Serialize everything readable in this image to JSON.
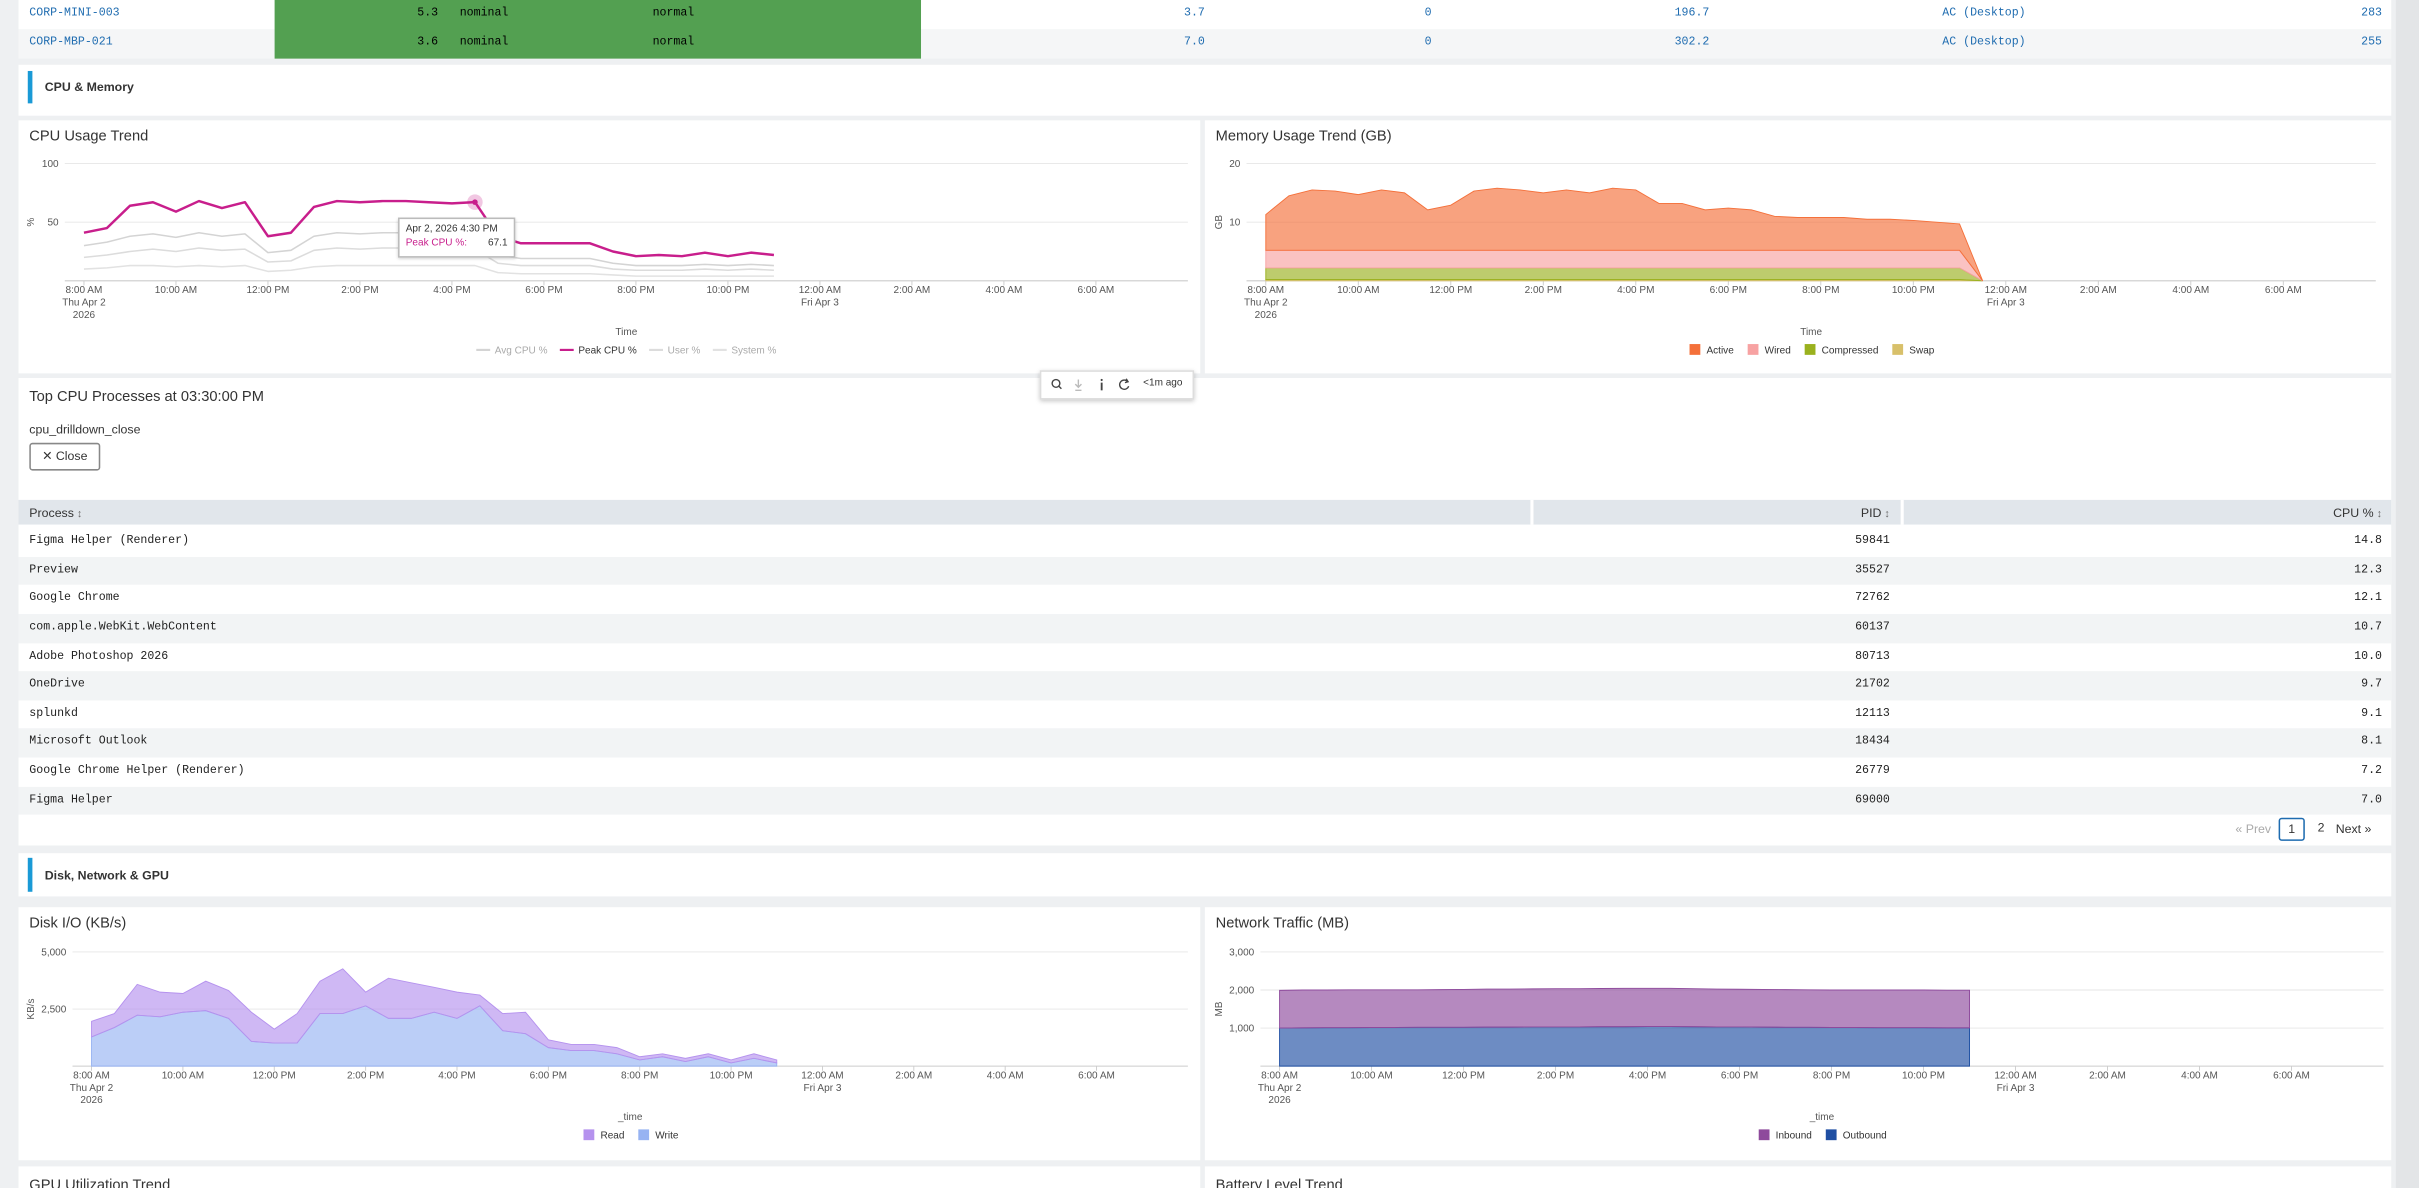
{
  "device_table": {
    "rows": [
      [
        "CORP-MINI-003",
        "5.3",
        "nominal",
        "normal",
        "3.7",
        "0",
        "196.7",
        "AC (Desktop)",
        "283"
      ],
      [
        "CORP-MBP-021",
        "3.6",
        "nominal",
        "normal",
        "7.0",
        "0",
        "302.2",
        "AC (Desktop)",
        "255"
      ]
    ]
  },
  "sections": [
    "CPU & Memory",
    "Disk, Network & GPU"
  ],
  "chart_data": [
    {
      "type": "line",
      "title": "CPU Usage Trend",
      "xlabel": "Time",
      "ylabel": "%",
      "x": [
        "2026-04-02T08:00",
        "2026-04-02T08:30",
        "2026-04-02T09:00",
        "2026-04-02T09:30",
        "2026-04-02T10:00",
        "2026-04-02T10:30",
        "2026-04-02T11:00",
        "2026-04-02T11:30",
        "2026-04-02T12:00",
        "2026-04-02T12:30",
        "2026-04-02T13:00",
        "2026-04-02T13:30",
        "2026-04-02T14:00",
        "2026-04-02T14:30",
        "2026-04-02T15:00",
        "2026-04-02T15:30",
        "2026-04-02T16:00",
        "2026-04-02T16:30",
        "2026-04-02T17:00",
        "2026-04-02T17:30",
        "2026-04-02T18:00",
        "2026-04-02T18:30",
        "2026-04-02T19:00",
        "2026-04-02T19:30",
        "2026-04-02T20:00",
        "2026-04-02T20:30",
        "2026-04-02T21:00",
        "2026-04-02T21:30",
        "2026-04-02T22:00",
        "2026-04-02T22:30",
        "2026-04-02T23:00"
      ],
      "xlim": [
        "2026-04-02T07:35",
        "2026-04-03T08:00"
      ],
      "xticks": [
        {
          "value": "2026-04-02T08:00",
          "label": "8:00 AM\nThu Apr 2\n2026"
        },
        {
          "value": "2026-04-02T10:00",
          "label": "10:00 AM"
        },
        {
          "value": "2026-04-02T12:00",
          "label": "12:00 PM"
        },
        {
          "value": "2026-04-02T14:00",
          "label": "2:00 PM"
        },
        {
          "value": "2026-04-02T16:00",
          "label": "4:00 PM"
        },
        {
          "value": "2026-04-02T18:00",
          "label": "6:00 PM"
        },
        {
          "value": "2026-04-02T20:00",
          "label": "8:00 PM"
        },
        {
          "value": "2026-04-02T22:00",
          "label": "10:00 PM"
        },
        {
          "value": "2026-04-03T00:00",
          "label": "12:00 AM\nFri Apr 3"
        },
        {
          "value": "2026-04-03T02:00",
          "label": "2:00 AM"
        },
        {
          "value": "2026-04-03T04:00",
          "label": "4:00 AM"
        },
        {
          "value": "2026-04-03T06:00",
          "label": "6:00 AM"
        }
      ],
      "ylim": [
        0,
        100
      ],
      "yticks": [
        50,
        100
      ],
      "grid": true,
      "legend": "bottom",
      "series": [
        {
          "name": "Avg CPU %",
          "color": "#d4d4d4",
          "muted": true,
          "values": [
            30,
            33,
            38,
            40,
            37,
            41,
            38,
            40,
            24,
            26,
            38,
            41,
            40,
            41,
            41,
            40,
            40,
            40,
            22,
            19,
            19,
            19,
            19,
            15,
            13,
            13,
            13,
            14,
            13,
            14,
            13
          ]
        },
        {
          "name": "Peak CPU %",
          "color": "#c81e8c",
          "values": [
            41,
            45,
            64,
            67,
            59,
            68,
            62,
            67,
            38,
            41,
            63,
            68,
            67,
            68,
            68,
            67,
            66,
            67.1,
            38,
            32,
            32,
            32,
            32,
            25,
            21,
            22,
            21,
            24,
            21,
            24,
            22
          ]
        },
        {
          "name": "User %",
          "color": "#dcdcdc",
          "muted": true,
          "values": [
            20,
            22,
            25,
            27,
            25,
            28,
            26,
            27,
            16,
            17,
            26,
            28,
            27,
            28,
            28,
            27,
            27,
            27,
            15,
            13,
            13,
            13,
            13,
            10,
            9,
            9,
            9,
            10,
            9,
            10,
            9
          ]
        },
        {
          "name": "System %",
          "color": "#e2e2e2",
          "muted": true,
          "values": [
            10,
            11,
            13,
            13,
            12,
            13,
            12,
            13,
            8,
            9,
            12,
            13,
            13,
            13,
            13,
            13,
            13,
            13,
            7,
            6,
            6,
            6,
            6,
            5,
            4,
            4,
            4,
            4,
            4,
            4,
            4
          ]
        }
      ]
    },
    {
      "type": "area",
      "stacked": true,
      "title": "Memory Usage Trend (GB)",
      "xlabel": "Time",
      "ylabel": "GB",
      "x": [
        "2026-04-02T08:00",
        "2026-04-02T08:30",
        "2026-04-02T09:00",
        "2026-04-02T09:30",
        "2026-04-02T10:00",
        "2026-04-02T10:30",
        "2026-04-02T11:00",
        "2026-04-02T11:30",
        "2026-04-02T12:00",
        "2026-04-02T12:30",
        "2026-04-02T13:00",
        "2026-04-02T13:30",
        "2026-04-02T14:00",
        "2026-04-02T14:30",
        "2026-04-02T15:00",
        "2026-04-02T15:30",
        "2026-04-02T16:00",
        "2026-04-02T16:30",
        "2026-04-02T17:00",
        "2026-04-02T17:30",
        "2026-04-02T18:00",
        "2026-04-02T18:30",
        "2026-04-02T19:00",
        "2026-04-02T19:30",
        "2026-04-02T20:00",
        "2026-04-02T20:30",
        "2026-04-02T21:00",
        "2026-04-02T21:30",
        "2026-04-02T22:00",
        "2026-04-02T22:30",
        "2026-04-02T23:00",
        "2026-04-02T23:30"
      ],
      "xlim": [
        "2026-04-02T07:35",
        "2026-04-03T08:00"
      ],
      "xticks": [
        {
          "value": "2026-04-02T08:00",
          "label": "8:00 AM\nThu Apr 2\n2026"
        },
        {
          "value": "2026-04-02T10:00",
          "label": "10:00 AM"
        },
        {
          "value": "2026-04-02T12:00",
          "label": "12:00 PM"
        },
        {
          "value": "2026-04-02T14:00",
          "label": "2:00 PM"
        },
        {
          "value": "2026-04-02T16:00",
          "label": "4:00 PM"
        },
        {
          "value": "2026-04-02T18:00",
          "label": "6:00 PM"
        },
        {
          "value": "2026-04-02T20:00",
          "label": "8:00 PM"
        },
        {
          "value": "2026-04-02T22:00",
          "label": "10:00 PM"
        },
        {
          "value": "2026-04-03T00:00",
          "label": "12:00 AM\nFri Apr 3"
        },
        {
          "value": "2026-04-03T02:00",
          "label": "2:00 AM"
        },
        {
          "value": "2026-04-03T04:00",
          "label": "4:00 AM"
        },
        {
          "value": "2026-04-03T06:00",
          "label": "6:00 AM"
        }
      ],
      "ylim": [
        0,
        20
      ],
      "yticks": [
        10,
        20
      ],
      "grid": true,
      "legend": "bottom",
      "series": [
        {
          "name": "Active",
          "color": "#f4703a",
          "values": [
            6.1,
            9.3,
            10.3,
            10.1,
            9.5,
            10.3,
            9.8,
            6.9,
            7.7,
            10.1,
            10.6,
            10.3,
            9.8,
            10.3,
            9.8,
            10.6,
            10.3,
            8.0,
            8.0,
            6.9,
            7.2,
            6.9,
            5.8,
            5.6,
            5.6,
            5.6,
            5.3,
            5.3,
            5.1,
            4.8,
            4.5,
            0
          ]
        },
        {
          "name": "Wired",
          "color": "#f7a2a2",
          "values": [
            3.0,
            3.0,
            3.0,
            3.0,
            3.0,
            3.0,
            3.0,
            3.0,
            3.0,
            3.0,
            3.0,
            3.0,
            3.0,
            3.0,
            3.0,
            3.0,
            3.0,
            3.0,
            3.0,
            3.0,
            3.0,
            3.0,
            3.0,
            3.0,
            3.0,
            3.0,
            3.0,
            3.0,
            3.0,
            3.0,
            3.0,
            0
          ]
        },
        {
          "name": "Compressed",
          "color": "#9ab11e",
          "values": [
            2.0,
            2.0,
            2.0,
            2.0,
            2.0,
            2.0,
            2.0,
            2.0,
            2.0,
            2.0,
            2.0,
            2.0,
            2.0,
            2.0,
            2.0,
            2.0,
            2.0,
            2.0,
            2.0,
            2.0,
            2.0,
            2.0,
            2.0,
            2.0,
            2.0,
            2.0,
            2.0,
            2.0,
            2.0,
            2.0,
            2.0,
            0
          ]
        },
        {
          "name": "Swap",
          "color": "#d8c06a",
          "values": [
            0.2,
            0.2,
            0.2,
            0.2,
            0.2,
            0.2,
            0.2,
            0.2,
            0.2,
            0.2,
            0.2,
            0.2,
            0.2,
            0.2,
            0.2,
            0.2,
            0.2,
            0.2,
            0.2,
            0.2,
            0.2,
            0.2,
            0.2,
            0.2,
            0.2,
            0.2,
            0.2,
            0.2,
            0.2,
            0.2,
            0.2,
            0
          ]
        }
      ]
    },
    {
      "type": "area",
      "stacked": true,
      "title": "Disk I/O (KB/s)",
      "xlabel": "_time",
      "ylabel": "KB/s",
      "x": [
        "2026-04-02T08:00",
        "2026-04-02T08:30",
        "2026-04-02T09:00",
        "2026-04-02T09:30",
        "2026-04-02T10:00",
        "2026-04-02T10:30",
        "2026-04-02T11:00",
        "2026-04-02T11:30",
        "2026-04-02T12:00",
        "2026-04-02T12:30",
        "2026-04-02T13:00",
        "2026-04-02T13:30",
        "2026-04-02T14:00",
        "2026-04-02T14:30",
        "2026-04-02T15:00",
        "2026-04-02T15:30",
        "2026-04-02T16:00",
        "2026-04-02T16:30",
        "2026-04-02T17:00",
        "2026-04-02T17:30",
        "2026-04-02T18:00",
        "2026-04-02T18:30",
        "2026-04-02T19:00",
        "2026-04-02T19:30",
        "2026-04-02T20:00",
        "2026-04-02T20:30",
        "2026-04-02T21:00",
        "2026-04-02T21:30",
        "2026-04-02T22:00",
        "2026-04-02T22:30",
        "2026-04-02T23:00"
      ],
      "xlim": [
        "2026-04-02T07:35",
        "2026-04-03T08:00"
      ],
      "xticks": [
        {
          "value": "2026-04-02T08:00",
          "label": "8:00 AM\nThu Apr 2\n2026"
        },
        {
          "value": "2026-04-02T10:00",
          "label": "10:00 AM"
        },
        {
          "value": "2026-04-02T12:00",
          "label": "12:00 PM"
        },
        {
          "value": "2026-04-02T14:00",
          "label": "2:00 PM"
        },
        {
          "value": "2026-04-02T16:00",
          "label": "4:00 PM"
        },
        {
          "value": "2026-04-02T18:00",
          "label": "6:00 PM"
        },
        {
          "value": "2026-04-02T20:00",
          "label": "8:00 PM"
        },
        {
          "value": "2026-04-02T22:00",
          "label": "10:00 PM"
        },
        {
          "value": "2026-04-03T00:00",
          "label": "12:00 AM\nFri Apr 3"
        },
        {
          "value": "2026-04-03T02:00",
          "label": "2:00 AM"
        },
        {
          "value": "2026-04-03T04:00",
          "label": "4:00 AM"
        },
        {
          "value": "2026-04-03T06:00",
          "label": "6:00 AM"
        }
      ],
      "ylim": [
        0,
        5000
      ],
      "yticks": [
        {
          "value": 2500,
          "label": "2,500"
        },
        {
          "value": 5000,
          "label": "5,000"
        }
      ],
      "grid": true,
      "legend": "bottom",
      "series": [
        {
          "name": "Read",
          "color": "#b592ee",
          "values": [
            680,
            610,
            1350,
            1080,
            820,
            1290,
            1220,
            1280,
            610,
            1290,
            1420,
            1960,
            600,
            1760,
            1560,
            1090,
            1150,
            470,
            750,
            940,
            340,
            270,
            270,
            270,
            140,
            130,
            140,
            130,
            130,
            200,
            130
          ]
        },
        {
          "name": "Write",
          "color": "#97b3f2",
          "values": [
            1280,
            1690,
            2230,
            2160,
            2360,
            2430,
            2090,
            1080,
            1010,
            1010,
            2300,
            2300,
            2640,
            2090,
            2090,
            2360,
            2090,
            2640,
            1550,
            1420,
            810,
            680,
            680,
            540,
            270,
            410,
            200,
            410,
            140,
            340,
            140
          ]
        }
      ]
    },
    {
      "type": "area",
      "stacked": true,
      "title": "Network Traffic (MB)",
      "xlabel": "_time",
      "ylabel": "MB",
      "x": [
        "2026-04-02T08:00",
        "2026-04-02T08:30",
        "2026-04-02T09:00",
        "2026-04-02T09:30",
        "2026-04-02T10:00",
        "2026-04-02T10:30",
        "2026-04-02T11:00",
        "2026-04-02T11:30",
        "2026-04-02T12:00",
        "2026-04-02T12:30",
        "2026-04-02T13:00",
        "2026-04-02T13:30",
        "2026-04-02T14:00",
        "2026-04-02T14:30",
        "2026-04-02T15:00",
        "2026-04-02T15:30",
        "2026-04-02T16:00",
        "2026-04-02T16:30",
        "2026-04-02T17:00",
        "2026-04-02T17:30",
        "2026-04-02T18:00",
        "2026-04-02T18:30",
        "2026-04-02T19:00",
        "2026-04-02T19:30",
        "2026-04-02T20:00",
        "2026-04-02T20:30",
        "2026-04-02T21:00",
        "2026-04-02T21:30",
        "2026-04-02T22:00",
        "2026-04-02T22:30",
        "2026-04-02T23:00"
      ],
      "xlim": [
        "2026-04-02T07:35",
        "2026-04-03T08:00"
      ],
      "xticks": [
        {
          "value": "2026-04-02T08:00",
          "label": "8:00 AM\nThu Apr 2\n2026"
        },
        {
          "value": "2026-04-02T10:00",
          "label": "10:00 AM"
        },
        {
          "value": "2026-04-02T12:00",
          "label": "12:00 PM"
        },
        {
          "value": "2026-04-02T14:00",
          "label": "2:00 PM"
        },
        {
          "value": "2026-04-02T16:00",
          "label": "4:00 PM"
        },
        {
          "value": "2026-04-02T18:00",
          "label": "6:00 PM"
        },
        {
          "value": "2026-04-02T20:00",
          "label": "8:00 PM"
        },
        {
          "value": "2026-04-02T22:00",
          "label": "10:00 PM"
        },
        {
          "value": "2026-04-03T00:00",
          "label": "12:00 AM\nFri Apr 3"
        },
        {
          "value": "2026-04-03T02:00",
          "label": "2:00 AM"
        },
        {
          "value": "2026-04-03T04:00",
          "label": "4:00 AM"
        },
        {
          "value": "2026-04-03T06:00",
          "label": "6:00 AM"
        }
      ],
      "ylim": [
        0,
        3000
      ],
      "yticks": [
        {
          "value": 1000,
          "label": "1,000"
        },
        {
          "value": 2000,
          "label": "2,000"
        },
        {
          "value": 3000,
          "label": "3,000"
        }
      ],
      "grid": true,
      "legend": "bottom",
      "series": [
        {
          "name": "Inbound",
          "color": "#8e4a9c",
          "values": [
            990,
            995,
            990,
            995,
            990,
            990,
            985,
            990,
            995,
            1000,
            1000,
            1000,
            1005,
            1005,
            1005,
            1010,
            1005,
            1005,
            1000,
            995,
            990,
            990,
            990,
            985,
            985,
            985,
            990,
            990,
            990,
            990,
            990
          ]
        },
        {
          "name": "Outbound",
          "color": "#1f4fa3",
          "values": [
            1000,
            1005,
            1010,
            1010,
            1015,
            1015,
            1020,
            1020,
            1020,
            1025,
            1025,
            1030,
            1030,
            1030,
            1035,
            1035,
            1040,
            1040,
            1035,
            1030,
            1030,
            1025,
            1020,
            1020,
            1015,
            1015,
            1010,
            1010,
            1010,
            1005,
            1005
          ]
        }
      ]
    }
  ],
  "tooltip": {
    "title": "Apr 2, 2026 4:30 PM",
    "label": "Peak CPU %:"
  },
  "toolbar": {
    "status": "<1m ago"
  },
  "process_panel": {
    "title": "Top CPU Processes at 03:30:00 PM",
    "token": "cpu_drilldown_close",
    "button": "✕ Close",
    "columns": [
      "Process",
      "PID",
      "CPU %"
    ],
    "rows": [
      [
        "Figma Helper (Renderer)",
        "59841",
        "14.8"
      ],
      [
        "Preview",
        "35527",
        "12.3"
      ],
      [
        "Google Chrome",
        "72762",
        "12.1"
      ],
      [
        "com.apple.WebKit.WebContent",
        "60137",
        "10.7"
      ],
      [
        "Adobe Photoshop 2026",
        "80713",
        "10.0"
      ],
      [
        "OneDrive",
        "21702",
        "9.7"
      ],
      [
        "splunkd",
        "12113",
        "9.1"
      ],
      [
        "Microsoft Outlook",
        "18434",
        "8.1"
      ],
      [
        "Google Chrome Helper (Renderer)",
        "26779",
        "7.2"
      ],
      [
        "Figma Helper",
        "69000",
        "7.0"
      ]
    ],
    "pagination": {
      "prev": "« Prev",
      "pages": [
        "1",
        "2"
      ],
      "next": "Next »"
    }
  },
  "bottom_panels": [
    "GPU Utilization Trend",
    "Battery Level Trend"
  ]
}
